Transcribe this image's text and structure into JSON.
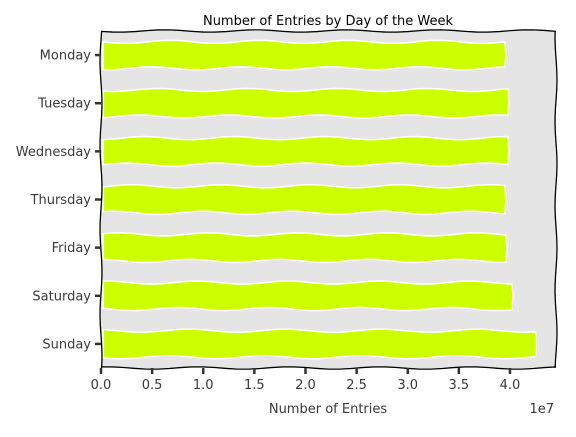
{
  "chart_data": {
    "type": "bar",
    "orientation": "horizontal",
    "title": "Number of Entries by Day of the Week",
    "xlabel": "Number of Entries",
    "ylabel": "",
    "x_offset_label": "1e7",
    "x_scale_multiplier": 10000000,
    "xlim": [
      0,
      4.45
    ],
    "x_ticks": [
      "0.0",
      "0.5",
      "1.0",
      "1.5",
      "2.0",
      "2.5",
      "3.0",
      "3.5",
      "4.0"
    ],
    "categories": [
      "Monday",
      "Tuesday",
      "Wednesday",
      "Thursday",
      "Friday",
      "Saturday",
      "Sunday"
    ],
    "values": [
      3.95,
      3.98,
      3.98,
      3.95,
      3.96,
      4.02,
      4.25
    ],
    "bar_color": "#ccff00",
    "plot_background": "#e5e5e5",
    "grid": false,
    "legend": "none"
  }
}
